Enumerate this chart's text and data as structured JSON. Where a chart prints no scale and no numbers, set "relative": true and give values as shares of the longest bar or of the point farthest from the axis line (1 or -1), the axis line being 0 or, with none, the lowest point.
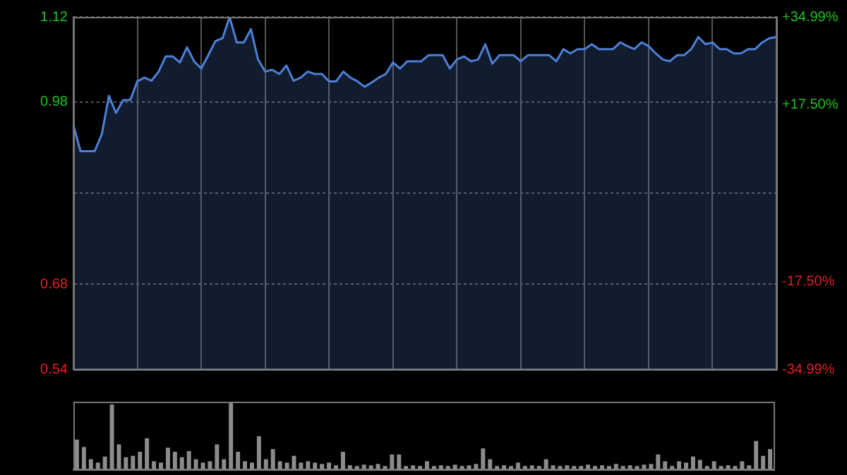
{
  "chart_data": [
    {
      "type": "area",
      "categories": [
        null,
        null,
        null,
        null,
        null,
        null,
        null,
        null,
        null,
        null,
        null,
        null,
        null,
        null,
        null,
        null,
        null,
        null,
        null,
        null,
        null,
        null,
        null,
        null,
        null,
        null,
        null,
        null,
        null,
        null,
        null,
        null,
        null,
        null,
        null,
        null,
        null,
        null,
        null,
        null,
        null,
        null,
        null,
        null,
        null,
        null,
        null,
        null,
        null,
        null,
        null,
        null,
        null,
        null,
        null,
        null,
        null,
        null,
        null,
        null,
        null,
        null,
        null,
        null,
        null,
        null,
        null,
        null,
        null,
        null,
        null,
        null,
        null,
        null,
        null,
        null,
        null,
        null,
        null,
        null,
        null,
        null,
        null,
        null,
        null,
        null,
        null,
        null,
        null,
        null,
        null,
        null,
        null,
        null,
        null,
        null,
        null,
        null,
        null,
        null
      ],
      "ylim": [
        0.54,
        1.12
      ],
      "yticks": [
        0.54,
        0.68,
        {
          "value": 0.83,
          "label": null
        },
        0.98,
        1.12
      ],
      "y2lim": [
        -34.99,
        34.99
      ],
      "y2ticks": [
        {
          "value": -34.99,
          "label": "-34.99%"
        },
        {
          "value": -17.5,
          "label": "-17.50%"
        },
        {
          "value": 17.5,
          "label": "+17.50%"
        },
        {
          "value": 34.99,
          "label": "+34.99%"
        }
      ],
      "grid": true,
      "legend": false,
      "tick_labels": "y",
      "series": [
        {
          "color": "#4d80d8",
          "values": [
            0.942,
            0.899,
            0.899,
            0.899,
            0.927,
            0.99,
            0.962,
            0.983,
            0.983,
            1.014,
            1.02,
            1.015,
            1.03,
            1.055,
            1.055,
            1.045,
            1.07,
            1.047,
            1.035,
            1.057,
            1.08,
            1.085,
            1.12,
            1.078,
            1.078,
            1.1,
            1.05,
            1.03,
            1.033,
            1.026,
            1.04,
            1.015,
            1.02,
            1.03,
            1.026,
            1.026,
            1.014,
            1.014,
            1.03,
            1.02,
            1.014,
            1.005,
            1.012,
            1.02,
            1.026,
            1.045,
            1.035,
            1.047,
            1.047,
            1.047,
            1.057,
            1.057,
            1.057,
            1.035,
            1.05,
            1.055,
            1.047,
            1.05,
            1.075,
            1.043,
            1.057,
            1.057,
            1.057,
            1.047,
            1.057,
            1.057,
            1.057,
            1.057,
            1.047,
            1.067,
            1.06,
            1.067,
            1.067,
            1.075,
            1.067,
            1.067,
            1.067,
            1.078,
            1.072,
            1.067,
            1.078,
            1.072,
            1.06,
            1.05,
            1.047,
            1.057,
            1.057,
            1.067,
            1.087,
            1.075,
            1.078,
            1.067,
            1.067,
            1.06,
            1.06,
            1.067,
            1.067,
            1.078,
            1.085,
            1.087
          ]
        }
      ]
    },
    {
      "type": "bar",
      "relative": true,
      "color": "#8c8c8c",
      "legend": false,
      "tick_labels": false,
      "categories": [
        null,
        null,
        null,
        null,
        null,
        null,
        null,
        null,
        null,
        null,
        null,
        null,
        null,
        null,
        null,
        null,
        null,
        null,
        null,
        null,
        null,
        null,
        null,
        null,
        null,
        null,
        null,
        null,
        null,
        null,
        null,
        null,
        null,
        null,
        null,
        null,
        null,
        null,
        null,
        null,
        null,
        null,
        null,
        null,
        null,
        null,
        null,
        null,
        null,
        null,
        null,
        null,
        null,
        null,
        null,
        null,
        null,
        null,
        null,
        null,
        null,
        null,
        null,
        null,
        null,
        null,
        null,
        null,
        null,
        null,
        null,
        null,
        null,
        null,
        null,
        null,
        null,
        null,
        null,
        null,
        null,
        null,
        null,
        null,
        null,
        null,
        null,
        null,
        null,
        null,
        null,
        null,
        null,
        null,
        null,
        null,
        null,
        null,
        null,
        null
      ],
      "values": [
        0.44,
        0.33,
        0.15,
        0.1,
        0.19,
        0.96,
        0.37,
        0.18,
        0.2,
        0.26,
        0.46,
        0.12,
        0.1,
        0.32,
        0.26,
        0.18,
        0.27,
        0.15,
        0.1,
        0.12,
        0.37,
        0.15,
        1.0,
        0.26,
        0.12,
        0.1,
        0.49,
        0.15,
        0.3,
        0.12,
        0.1,
        0.2,
        0.1,
        0.12,
        0.1,
        0.08,
        0.1,
        0.06,
        0.26,
        0.06,
        0.05,
        0.07,
        0.06,
        0.08,
        0.05,
        0.22,
        0.22,
        0.05,
        0.06,
        0.05,
        0.12,
        0.05,
        0.06,
        0.05,
        0.07,
        0.05,
        0.06,
        0.08,
        0.31,
        0.15,
        0.05,
        0.06,
        0.05,
        0.1,
        0.05,
        0.06,
        0.05,
        0.15,
        0.06,
        0.05,
        0.06,
        0.05,
        0.05,
        0.07,
        0.05,
        0.06,
        0.05,
        0.08,
        0.05,
        0.06,
        0.05,
        0.07,
        0.08,
        0.22,
        0.12,
        0.05,
        0.12,
        0.1,
        0.19,
        0.14,
        0.05,
        0.12,
        0.05,
        0.06,
        0.05,
        0.12,
        0.06,
        0.42,
        0.2,
        0.3
      ]
    }
  ]
}
